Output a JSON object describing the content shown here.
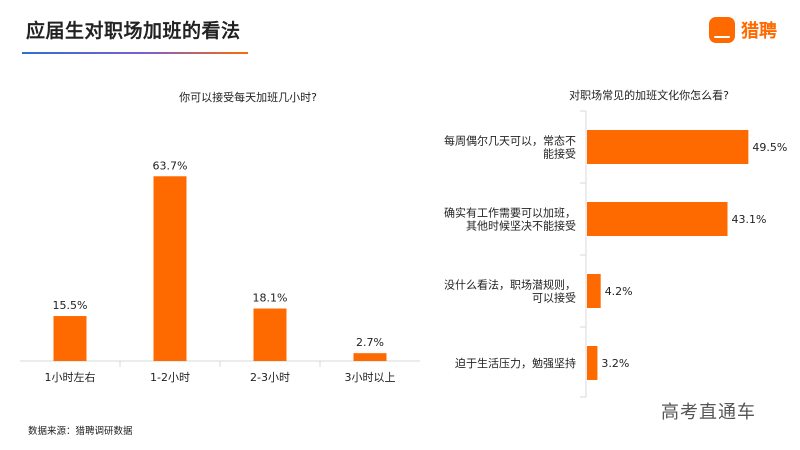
{
  "header": {
    "title": "应届生对职场加班的看法"
  },
  "brand": {
    "icon_text": "猎聘",
    "name": "猎聘",
    "color": "#ff6a00"
  },
  "footer": {
    "source": "数据来源：猎聘调研数据",
    "watermark": "高考直通车"
  },
  "chart_data": [
    {
      "type": "bar",
      "title": "你可以接受每天加班几小时?",
      "categories": [
        "1小时左右",
        "1-2小时",
        "2-3小时",
        "3小时以上"
      ],
      "values": [
        15.5,
        63.7,
        18.1,
        2.7
      ],
      "value_labels": [
        "15.5%",
        "63.7%",
        "18.1%",
        "2.7%"
      ],
      "color": "#ff6a00",
      "ylim": [
        0,
        70
      ],
      "grid": false
    },
    {
      "type": "bar",
      "orientation": "horizontal",
      "title": "对职场常见的加班文化你怎么看?",
      "categories": [
        [
          "每周偶尔几天可以，常态不",
          "能接受"
        ],
        [
          "确实有工作需要可以加班，",
          "其他时候坚决不能接受"
        ],
        [
          "没什么看法，职场潜规则，",
          "可以接受"
        ],
        [
          "迫于生活压力，勉强坚持"
        ]
      ],
      "values": [
        49.5,
        43.1,
        4.2,
        3.2
      ],
      "value_labels": [
        "49.5%",
        "43.1%",
        "4.2%",
        "3.2%"
      ],
      "color": "#ff6a00",
      "xlim": [
        0,
        50
      ],
      "grid": false
    }
  ]
}
